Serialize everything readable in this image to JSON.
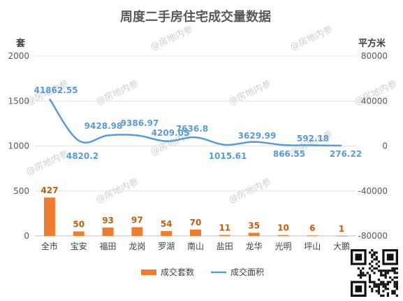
{
  "watermark": "@房地内参",
  "chart_data": {
    "type": "bar",
    "title": "周度二手房住宅成交量数据",
    "categories": [
      "全市",
      "宝安",
      "福田",
      "龙岗",
      "罗湖",
      "南山",
      "盐田",
      "龙华",
      "光明",
      "坪山",
      "大鹏"
    ],
    "y_left": {
      "unit": "套",
      "ylim": [
        0,
        2000
      ],
      "ticks": [
        "0",
        "500",
        "1000",
        "1500",
        "2000"
      ]
    },
    "y_right": {
      "unit": "平方米",
      "ylim": [
        -80000,
        80000
      ],
      "ticks": [
        "-80000",
        "-40000",
        "0",
        "40000",
        "80000"
      ]
    },
    "series": [
      {
        "name": "成交套数",
        "type": "bar",
        "axis": "left",
        "color": "#ed7d31",
        "values": [
          427,
          50,
          93,
          97,
          54,
          70,
          11,
          35,
          10,
          6,
          1
        ],
        "labels": [
          "427",
          "50",
          "93",
          "97",
          "54",
          "70",
          "11",
          "35",
          "10",
          "6",
          "1"
        ]
      },
      {
        "name": "成交面积",
        "type": "line",
        "axis": "right",
        "color": "#5b9bd5",
        "values": [
          41862.55,
          4820.2,
          9428.98,
          9386.97,
          4209.05,
          7636.8,
          1015.61,
          3629.99,
          866.55,
          592.18,
          276.22
        ],
        "labels": [
          "41862.55",
          "4820.2",
          "9428.98",
          "9386.97",
          "4209.05",
          "7636.8",
          "1015.61",
          "3629.99",
          "866.55",
          "592.18",
          "276.22"
        ]
      }
    ],
    "legend_position": "bottom",
    "grid": true
  }
}
